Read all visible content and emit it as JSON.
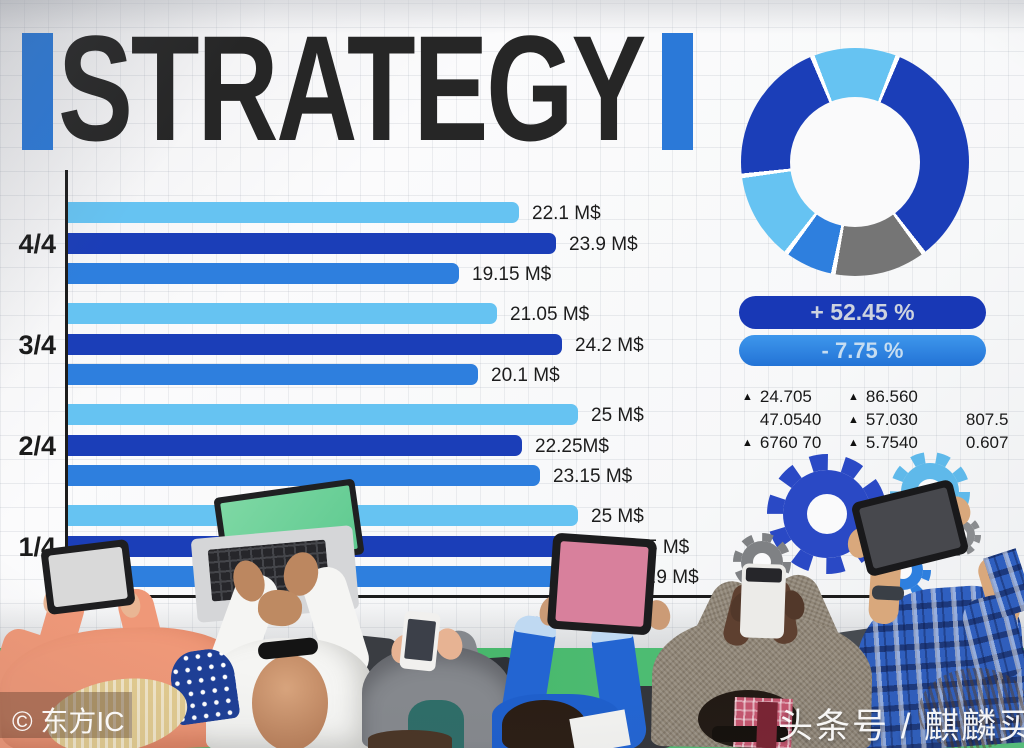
{
  "title": "STRATEGY",
  "watermarks": {
    "left": "© 东方IC",
    "right": "头条号 / 麒麟买手"
  },
  "palette": {
    "dark_blue": "#1B3EB8",
    "medium_blue": "#2E7FDE",
    "light_blue": "#66C3F2",
    "gray": "#757575",
    "royal_gear": "#2A49C5",
    "light_gear": "#5FB9EA",
    "gray_gear": "#7F8184",
    "green_gear": "#3FAE68",
    "accent_bar": "#2B79D8"
  },
  "indicators": {
    "up": "+ 52.45 %",
    "down": "- 7.75 %"
  },
  "chart_data": [
    {
      "type": "bar",
      "orientation": "horizontal",
      "unit": "M$",
      "xlim": [
        0,
        27
      ],
      "categories": [
        "4/4",
        "3/4",
        "2/4",
        "1/4"
      ],
      "series": [
        {
          "name": "series-light",
          "color_key": "light_blue",
          "values": [
            22.1,
            21.05,
            25,
            25
          ]
        },
        {
          "name": "series-dark",
          "color_key": "dark_blue",
          "values": [
            23.9,
            24.2,
            22.25,
            25.95
          ]
        },
        {
          "name": "series-medium",
          "color_key": "medium_blue",
          "values": [
            19.15,
            20.1,
            23.15,
            26.9
          ]
        }
      ],
      "bar_labels": [
        [
          "22.1 M$",
          "23.9 M$",
          "19.15 M$"
        ],
        [
          "21.05 M$",
          "24.2 M$",
          "20.1 M$"
        ],
        [
          "25 M$",
          "22.25M$",
          "23.15 M$"
        ],
        [
          "25 M$",
          "25.95 M$",
          "26.9 M$"
        ]
      ],
      "grid": true,
      "legend": false
    },
    {
      "type": "pie",
      "subtype": "donut",
      "start_angle_deg": 338,
      "segments": [
        {
          "sweep_deg": 44,
          "color_key": "light_blue"
        },
        {
          "sweep_deg": 121,
          "color_key": "dark_blue"
        },
        {
          "sweep_deg": 48,
          "color_key": "gray"
        },
        {
          "sweep_deg": 26,
          "color_key": "medium_blue"
        },
        {
          "sweep_deg": 46,
          "color_key": "light_blue"
        },
        {
          "sweep_deg": 75,
          "color_key": "dark_blue"
        }
      ]
    },
    {
      "type": "table",
      "name": "indicator-figures",
      "rows": [
        [
          {
            "marker": true,
            "text": "24.705"
          },
          {
            "marker": true,
            "text": "86.560"
          },
          {
            "marker": false,
            "text": ""
          }
        ],
        [
          {
            "marker": false,
            "text": "47.0540"
          },
          {
            "marker": true,
            "text": "57.030"
          },
          {
            "marker": false,
            "text": "807.5"
          }
        ],
        [
          {
            "marker": true,
            "text": "6760 70"
          },
          {
            "marker": true,
            "text": "5.7540"
          },
          {
            "marker": false,
            "text": "0.607"
          }
        ]
      ]
    }
  ]
}
